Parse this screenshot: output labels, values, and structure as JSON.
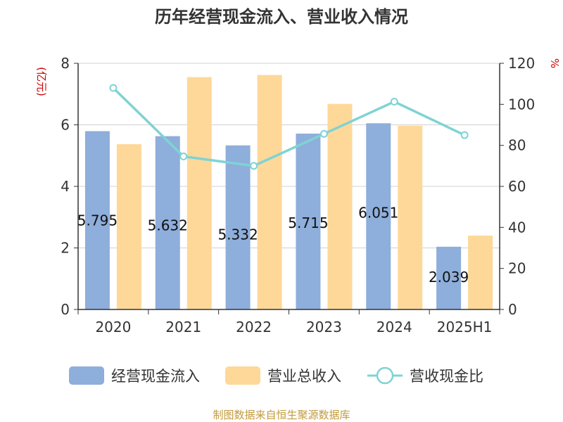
{
  "chart_data": {
    "type": "bar",
    "title": "历年经营现金流入、营业收入情况",
    "left_unit": "(亿元)",
    "right_unit": "%",
    "categories": [
      "2020",
      "2021",
      "2022",
      "2023",
      "2024",
      "2025H1"
    ],
    "ylim": [
      0,
      8
    ],
    "y_ticks": [
      "0",
      "2",
      "4",
      "6",
      "8"
    ],
    "y2lim": [
      0,
      120
    ],
    "y2_ticks": [
      "0",
      "20",
      "40",
      "60",
      "80",
      "100",
      "120"
    ],
    "series": [
      {
        "name": "经营现金流入",
        "type": "bar",
        "axis": "left",
        "color": "#8eaedb",
        "values": [
          5.795,
          5.632,
          5.332,
          5.715,
          6.051,
          2.039
        ],
        "labels": [
          "5.795",
          "5.632",
          "5.332",
          "5.715",
          "6.051",
          "2.039"
        ]
      },
      {
        "name": "营业总收入",
        "type": "bar",
        "axis": "left",
        "color": "#fed898",
        "values": [
          5.37,
          7.55,
          7.62,
          6.68,
          5.97,
          2.4
        ]
      },
      {
        "name": "营收现金比",
        "type": "line",
        "axis": "right",
        "color": "#7fd3d4",
        "values": [
          108,
          74.6,
          70,
          85.6,
          101.3,
          85
        ]
      }
    ],
    "grid": true,
    "legend_position": "bottom",
    "source": "制图数据来自恒生聚源数据库",
    "colors": {
      "unit": "#cc0000",
      "source": "#c29a3a",
      "axis": "#333333",
      "grid": "#d0d0d0"
    }
  }
}
